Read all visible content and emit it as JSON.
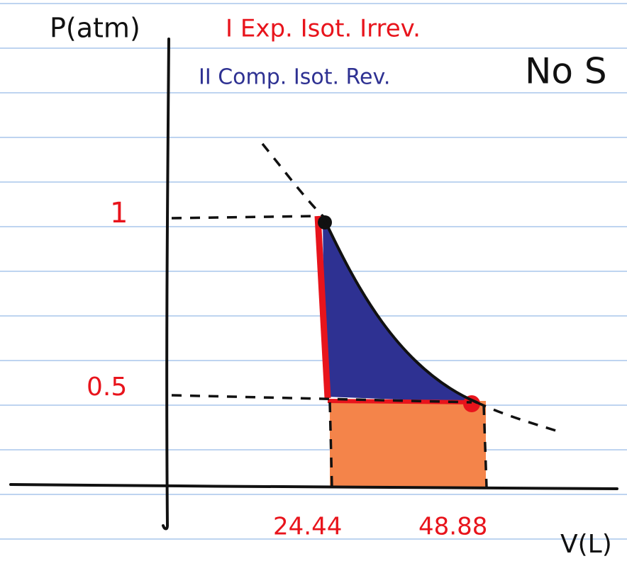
{
  "axes": {
    "y_label": "P(atm)",
    "x_label": "V(L)"
  },
  "legend": {
    "process_1": "I Exp. Isot. Irrev.",
    "process_2": "II Comp. Isot. Rev."
  },
  "note": "No S",
  "y_ticks": [
    "1",
    "0.5"
  ],
  "x_ticks": [
    "24.44",
    "48.88"
  ]
}
